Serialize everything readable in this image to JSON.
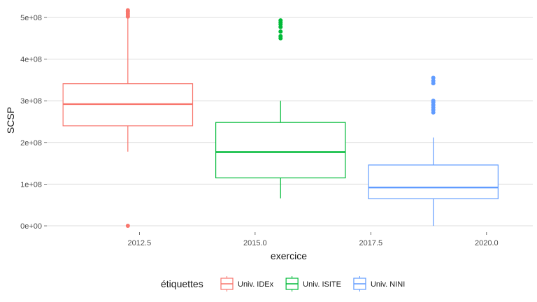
{
  "chart_data": {
    "type": "box",
    "xlabel": "exercice",
    "ylabel": "SCSP",
    "xlim": [
      2010.5,
      2021.0
    ],
    "ylim": [
      -15000000,
      525000000
    ],
    "x_ticks": [
      2012.5,
      2015.0,
      2017.5,
      2020.0
    ],
    "x_tick_labels": [
      "2012.5",
      "2015.0",
      "2017.5",
      "2020.0"
    ],
    "y_ticks": [
      0,
      100000000,
      200000000,
      300000000,
      400000000,
      500000000
    ],
    "y_tick_labels": [
      "0e+00",
      "1e+08",
      "2e+08",
      "3e+08",
      "4e+08",
      "5e+08"
    ],
    "grid": true,
    "legend_title": "étiquettes",
    "legend_position": "bottom",
    "series": [
      {
        "name": "Univ. IDEx",
        "color": "#F8766D",
        "x_center": 2012.25,
        "x_left": 2010.85,
        "x_right": 2013.65,
        "whisker_low": 178000000,
        "q1": 240000000,
        "median": 292000000,
        "q3": 341000000,
        "whisker_high": 500000000,
        "outliers": [
          502000000,
          506000000,
          510000000,
          514000000,
          517000000,
          0
        ]
      },
      {
        "name": "Univ. ISITE",
        "color": "#00BA38",
        "x_center": 2015.55,
        "x_left": 2014.15,
        "x_right": 2016.95,
        "whisker_low": 66000000,
        "q1": 115000000,
        "median": 177000000,
        "q3": 248000000,
        "whisker_high": 300000000,
        "outliers": [
          450000000,
          455000000,
          466000000,
          477000000,
          483000000,
          488000000,
          493000000
        ]
      },
      {
        "name": "Univ. NINI",
        "color": "#619CFF",
        "x_center": 2018.85,
        "x_left": 2017.45,
        "x_right": 2020.25,
        "whisker_low": 0,
        "q1": 65000000,
        "median": 92000000,
        "q3": 146000000,
        "whisker_high": 212000000,
        "outliers": [
          272000000,
          278000000,
          284000000,
          290000000,
          296000000,
          300000000,
          342000000,
          348000000,
          355000000
        ]
      }
    ]
  }
}
